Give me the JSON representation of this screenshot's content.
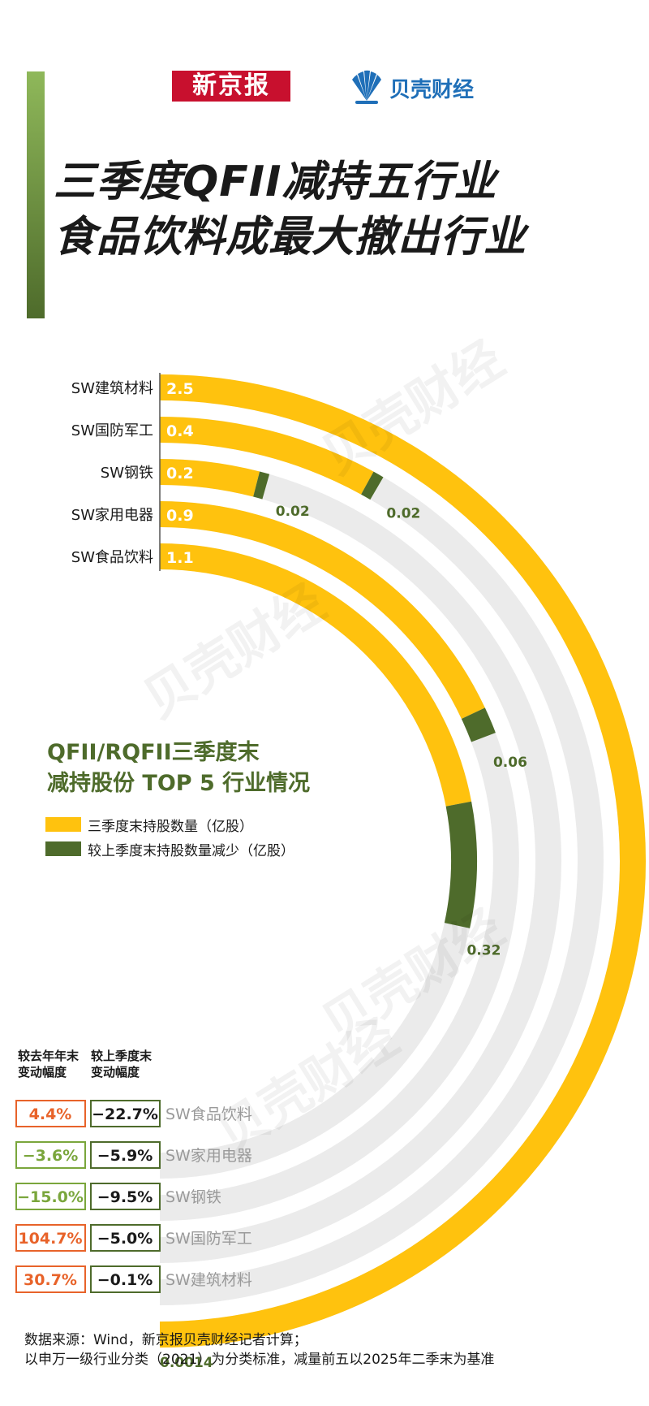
{
  "header": {
    "logo_xinjingbao": "新京报",
    "logo_beike": "贝壳财经",
    "title_line1": "三季度QFII减持五行业",
    "title_line2": "食品饮料成最大撤出行业"
  },
  "chart_title": {
    "line1": "QFII/RQFII三季度末",
    "line2": "减持股份 TOP 5 行业情况"
  },
  "legend": [
    {
      "label": "三季度末持股数量（亿股）",
      "color": "#ffc20e"
    },
    {
      "label": "较上季度末持股数量减少（亿股）",
      "color": "#4e6b2b"
    }
  ],
  "chart_data": {
    "type": "radial-bar",
    "units": "亿股",
    "categories": [
      "SW建筑材料",
      "SW国防军工",
      "SW钢铁",
      "SW家用电器",
      "SW食品饮料"
    ],
    "series": [
      {
        "name": "三季度末持股数量（亿股）",
        "values": [
          2.5,
          0.4,
          0.2,
          0.9,
          1.1
        ]
      },
      {
        "name": "较上季度末持股数量减少（亿股）",
        "values": [
          0.0014,
          0.02,
          0.02,
          0.06,
          0.32
        ]
      }
    ],
    "value_labels": [
      "2.5",
      "0.4",
      "0.2",
      "0.9",
      "1.1"
    ],
    "decrease_labels": [
      "0.0014",
      "0.02",
      "0.02",
      "0.06",
      "0.32"
    ],
    "colors": {
      "holding": "#ffc20e",
      "decrease": "#4e6b2b",
      "track": "#ebebeb"
    }
  },
  "change_table": {
    "header_ytd": "较去年年末\n变动幅度",
    "header_qoq": "较上季度末\n变动幅度",
    "rows": [
      {
        "industry": "SW食品饮料",
        "ytd": "4.4%",
        "qoq": "−22.7%",
        "ytd_color": "#e8632a"
      },
      {
        "industry": "SW家用电器",
        "ytd": "−3.6%",
        "qoq": "−5.9%",
        "ytd_color": "#7aa63c"
      },
      {
        "industry": "SW钢铁",
        "ytd": "−15.0%",
        "qoq": "−9.5%",
        "ytd_color": "#7aa63c"
      },
      {
        "industry": "SW国防军工",
        "ytd": "104.7%",
        "qoq": "−5.0%",
        "ytd_color": "#e8632a"
      },
      {
        "industry": "SW建筑材料",
        "ytd": "30.7%",
        "qoq": "−0.1%",
        "ytd_color": "#e8632a"
      }
    ]
  },
  "watermark": "贝壳财经",
  "source": {
    "line1": "数据来源：Wind，新京报贝壳财经记者计算；",
    "line2": "以申万一级行业分类（2021）为分类标准，减量前五以2025年二季末为基准"
  }
}
